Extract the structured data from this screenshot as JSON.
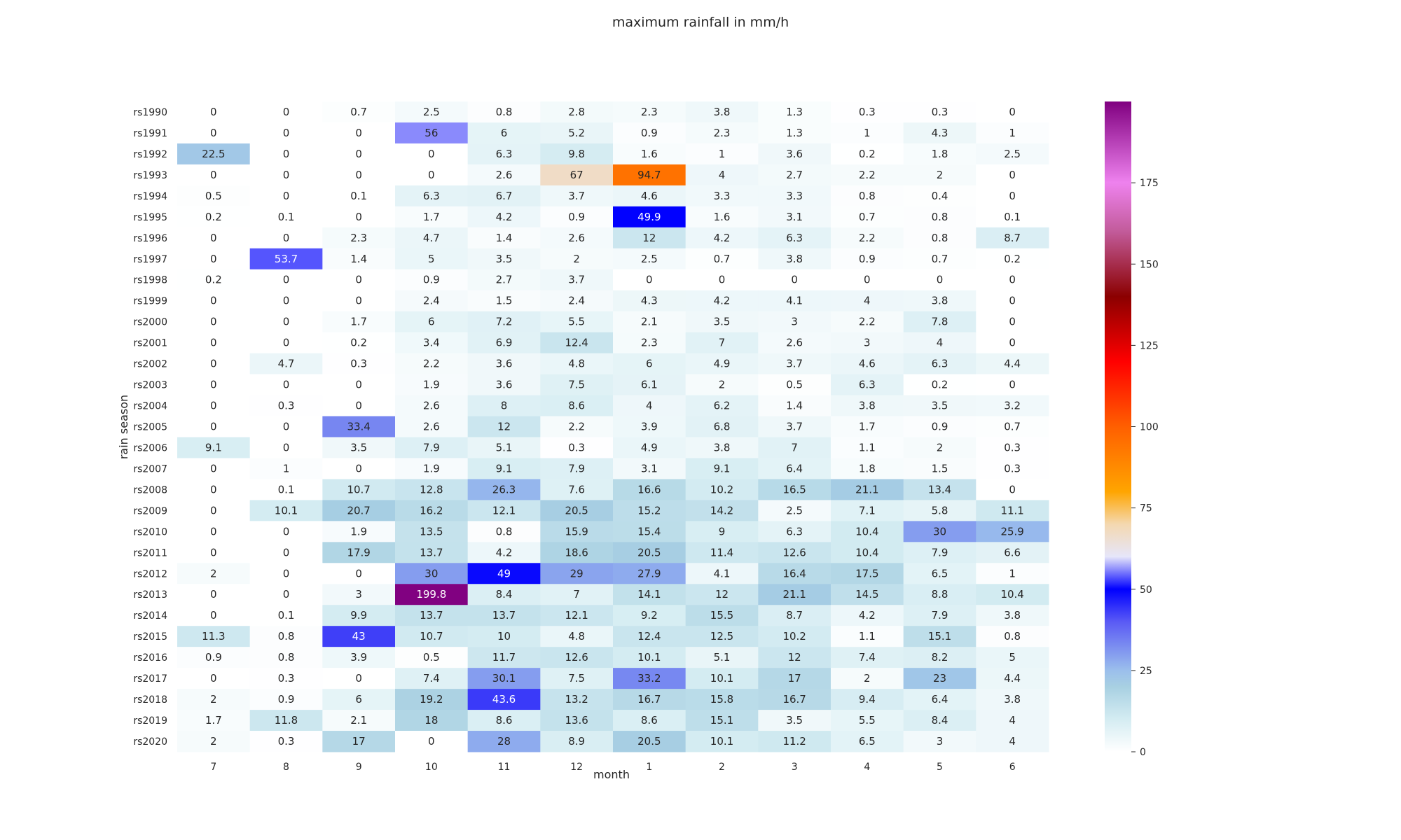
{
  "chart_data": {
    "type": "heatmap",
    "title": "maximum rainfall in mm/h",
    "xlabel": "month",
    "ylabel": "rain season",
    "x_categories": [
      "7",
      "8",
      "9",
      "10",
      "11",
      "12",
      "1",
      "2",
      "3",
      "4",
      "5",
      "6"
    ],
    "y_categories": [
      "rs1990",
      "rs1991",
      "rs1992",
      "rs1993",
      "rs1994",
      "rs1995",
      "rs1996",
      "rs1997",
      "rs1998",
      "rs1999",
      "rs2000",
      "rs2001",
      "rs2002",
      "rs2003",
      "rs2004",
      "rs2005",
      "rs2006",
      "rs2007",
      "rs2008",
      "rs2009",
      "rs2010",
      "rs2011",
      "rs2012",
      "rs2013",
      "rs2014",
      "rs2015",
      "rs2016",
      "rs2017",
      "rs2018",
      "rs2019",
      "rs2020"
    ],
    "values": [
      [
        0,
        0,
        0.7,
        2.5,
        0.8,
        2.8,
        2.3,
        3.8,
        1.3,
        0.3,
        0.3,
        0
      ],
      [
        0,
        0,
        0,
        56,
        6,
        5.2,
        0.9,
        2.3,
        1.3,
        1,
        4.3,
        1
      ],
      [
        22.5,
        0,
        0,
        0,
        6.3,
        9.8,
        1.6,
        1,
        3.6,
        0.2,
        1.8,
        2.5
      ],
      [
        0,
        0,
        0,
        0,
        2.6,
        67,
        94.7,
        4,
        2.7,
        2.2,
        2,
        0
      ],
      [
        0.5,
        0,
        0.1,
        6.3,
        6.7,
        3.7,
        4.6,
        3.3,
        3.3,
        0.8,
        0.4,
        0
      ],
      [
        0.2,
        0.1,
        0,
        1.7,
        4.2,
        0.9,
        49.9,
        1.6,
        3.1,
        0.7,
        0.8,
        0.1
      ],
      [
        0,
        0,
        2.3,
        4.7,
        1.4,
        2.6,
        12,
        4.2,
        6.3,
        2.2,
        0.8,
        8.7
      ],
      [
        0,
        53.7,
        1.4,
        5,
        3.5,
        2,
        2.5,
        0.7,
        3.8,
        0.9,
        0.7,
        0.2
      ],
      [
        0.2,
        0,
        0,
        0.9,
        2.7,
        3.7,
        0,
        0,
        0,
        0,
        0,
        0
      ],
      [
        0,
        0,
        0,
        2.4,
        1.5,
        2.4,
        4.3,
        4.2,
        4.1,
        4,
        3.8,
        0
      ],
      [
        0,
        0,
        1.7,
        6,
        7.2,
        5.5,
        2.1,
        3.5,
        3,
        2.2,
        7.8,
        0
      ],
      [
        0,
        0,
        0.2,
        3.4,
        6.9,
        12.4,
        2.3,
        7,
        2.6,
        3,
        4,
        0
      ],
      [
        0,
        4.7,
        0.3,
        2.2,
        3.6,
        4.8,
        6,
        4.9,
        3.7,
        4.6,
        6.3,
        4.4
      ],
      [
        0,
        0,
        0,
        1.9,
        3.6,
        7.5,
        6.1,
        2,
        0.5,
        6.3,
        0.2,
        0
      ],
      [
        0,
        0.3,
        0,
        2.6,
        8,
        8.6,
        4,
        6.2,
        1.4,
        3.8,
        3.5,
        3.2
      ],
      [
        0,
        0,
        33.4,
        2.6,
        12,
        2.2,
        3.9,
        6.8,
        3.7,
        1.7,
        0.9,
        0.7
      ],
      [
        9.1,
        0,
        3.5,
        7.9,
        5.1,
        0.3,
        4.9,
        3.8,
        7,
        1.1,
        2,
        0.3
      ],
      [
        0,
        1,
        0,
        1.9,
        9.1,
        7.9,
        3.1,
        9.1,
        6.4,
        1.8,
        1.5,
        0.3
      ],
      [
        0,
        0.1,
        10.7,
        12.8,
        26.3,
        7.6,
        16.6,
        10.2,
        16.5,
        21.1,
        13.4,
        0
      ],
      [
        0,
        10.1,
        20.7,
        16.2,
        12.1,
        20.5,
        15.2,
        14.2,
        2.5,
        7.1,
        5.8,
        11.1
      ],
      [
        0,
        0,
        1.9,
        13.5,
        0.8,
        15.9,
        15.4,
        9,
        6.3,
        10.4,
        30,
        25.9
      ],
      [
        0,
        0,
        17.9,
        13.7,
        4.2,
        18.6,
        20.5,
        11.4,
        12.6,
        10.4,
        7.9,
        6.6
      ],
      [
        2,
        0,
        0,
        30,
        49,
        29,
        27.9,
        4.1,
        16.4,
        17.5,
        6.5,
        1
      ],
      [
        0,
        0,
        3,
        199.8,
        8.4,
        7,
        14.1,
        12,
        21.1,
        14.5,
        8.8,
        10.4
      ],
      [
        0,
        0.1,
        9.9,
        13.7,
        13.7,
        12.1,
        9.2,
        15.5,
        8.7,
        4.2,
        7.9,
        3.8
      ],
      [
        11.3,
        0.8,
        43,
        10.7,
        10,
        4.8,
        12.4,
        12.5,
        10.2,
        1.1,
        15.1,
        0.8
      ],
      [
        0.9,
        0.8,
        3.9,
        0.5,
        11.7,
        12.6,
        10.1,
        5.1,
        12,
        7.4,
        8.2,
        5
      ],
      [
        0,
        0.3,
        0,
        7.4,
        30.1,
        7.5,
        33.2,
        10.1,
        17,
        2,
        23,
        4.4
      ],
      [
        2,
        0.9,
        6,
        19.2,
        43.6,
        13.2,
        16.7,
        15.8,
        16.7,
        9.4,
        6.4,
        3.8
      ],
      [
        1.7,
        11.8,
        2.1,
        18,
        8.6,
        13.6,
        8.6,
        15.1,
        3.5,
        5.5,
        8.4,
        4
      ],
      [
        2,
        0.3,
        17,
        0,
        28,
        8.9,
        20.5,
        10.1,
        11.2,
        6.5,
        3,
        4
      ]
    ],
    "colorbar": {
      "vmin": 0,
      "vmax": 200,
      "ticks": [
        0,
        25,
        50,
        75,
        100,
        125,
        150,
        175
      ],
      "colorscale": [
        [
          0,
          "#ffffff"
        ],
        [
          10,
          "#d4ecf2"
        ],
        [
          20,
          "#a8d0e2"
        ],
        [
          25,
          "#9bbfec"
        ],
        [
          40,
          "#5a5af5"
        ],
        [
          50,
          "#0000ff"
        ],
        [
          60,
          "#e6e6fa"
        ],
        [
          70,
          "#f4d8b0"
        ],
        [
          80,
          "#ffa500"
        ],
        [
          100,
          "#ff5f00"
        ],
        [
          120,
          "#ff0000"
        ],
        [
          140,
          "#8b0000"
        ],
        [
          160,
          "#c25b9a"
        ],
        [
          175,
          "#ee82ee"
        ],
        [
          200,
          "#800080"
        ]
      ]
    },
    "grid": false,
    "annotations": "cell values"
  }
}
